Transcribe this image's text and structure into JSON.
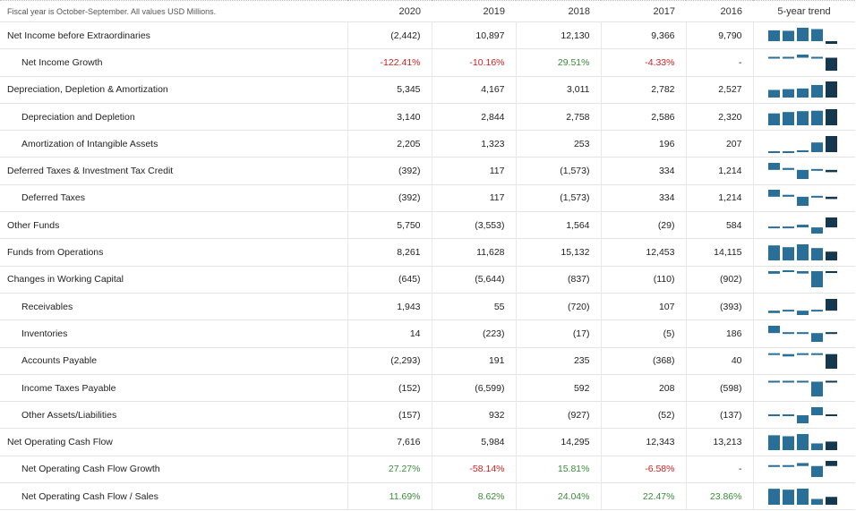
{
  "header": {
    "note": "Fiscal year is October-September. All values USD Millions.",
    "years": [
      "2020",
      "2019",
      "2018",
      "2017",
      "2016"
    ],
    "trend_label": "5-year trend"
  },
  "colors": {
    "trend_bar": "#2a6f97",
    "trend_bar_latest": "#16384f",
    "negative": "#d01f1f",
    "positive": "#3a8a3a"
  },
  "rows": [
    {
      "label": "Net Income before Extraordinaries",
      "indent": 0,
      "values": [
        "(2,442)",
        "10,897",
        "12,130",
        "9,366",
        "9,790"
      ],
      "trend": [
        9790,
        9366,
        12130,
        10897,
        -2442
      ]
    },
    {
      "label": "Net Income Growth",
      "indent": 1,
      "values": [
        "-122.41%",
        "-10.16%",
        "29.51%",
        "-4.33%",
        "-"
      ],
      "tones": [
        "neg",
        "neg",
        "pos",
        "neg",
        ""
      ],
      "trend": [
        0,
        -4.33,
        29.51,
        -10.16,
        -122.41
      ]
    },
    {
      "label": "Depreciation, Depletion & Amortization",
      "indent": 0,
      "values": [
        "5,345",
        "4,167",
        "3,011",
        "2,782",
        "2,527"
      ],
      "trend": [
        2527,
        2782,
        3011,
        4167,
        5345
      ]
    },
    {
      "label": "Depreciation and Depletion",
      "indent": 1,
      "values": [
        "3,140",
        "2,844",
        "2,758",
        "2,586",
        "2,320"
      ],
      "trend": [
        2320,
        2586,
        2758,
        2844,
        3140
      ]
    },
    {
      "label": "Amortization of Intangible Assets",
      "indent": 1,
      "values": [
        "2,205",
        "1,323",
        "253",
        "196",
        "207"
      ],
      "trend": [
        207,
        196,
        253,
        1323,
        2205
      ]
    },
    {
      "label": "Deferred Taxes & Investment Tax Credit",
      "indent": 0,
      "values": [
        "(392)",
        "117",
        "(1,573)",
        "334",
        "1,214"
      ],
      "trend": [
        1214,
        334,
        -1573,
        117,
        -392
      ]
    },
    {
      "label": "Deferred Taxes",
      "indent": 1,
      "values": [
        "(392)",
        "117",
        "(1,573)",
        "334",
        "1,214"
      ],
      "trend": [
        1214,
        334,
        -1573,
        117,
        -392
      ]
    },
    {
      "label": "Other Funds",
      "indent": 0,
      "values": [
        "5,750",
        "(3,553)",
        "1,564",
        "(29)",
        "584"
      ],
      "trend": [
        584,
        -29,
        1564,
        -3553,
        5750
      ]
    },
    {
      "label": "Funds from Operations",
      "indent": 0,
      "values": [
        "8,261",
        "11,628",
        "15,132",
        "12,453",
        "14,115"
      ],
      "trend": [
        14115,
        12453,
        15132,
        11628,
        8261
      ]
    },
    {
      "label": "Changes in Working Capital",
      "indent": 0,
      "values": [
        "(645)",
        "(5,644)",
        "(837)",
        "(110)",
        "(902)"
      ],
      "trend": [
        -902,
        -110,
        -837,
        -5644,
        -645
      ]
    },
    {
      "label": "Receivables",
      "indent": 1,
      "values": [
        "1,943",
        "55",
        "(720)",
        "107",
        "(393)"
      ],
      "trend": [
        -393,
        107,
        -720,
        55,
        1943
      ]
    },
    {
      "label": "Inventories",
      "indent": 1,
      "values": [
        "14",
        "(223)",
        "(17)",
        "(5)",
        "186"
      ],
      "trend": [
        186,
        -5,
        -17,
        -223,
        14
      ]
    },
    {
      "label": "Accounts Payable",
      "indent": 1,
      "values": [
        "(2,293)",
        "191",
        "235",
        "(368)",
        "40"
      ],
      "trend": [
        40,
        -368,
        235,
        191,
        -2293
      ]
    },
    {
      "label": "Income Taxes Payable",
      "indent": 1,
      "values": [
        "(152)",
        "(6,599)",
        "592",
        "208",
        "(598)"
      ],
      "trend": [
        -598,
        208,
        592,
        -6599,
        -152
      ]
    },
    {
      "label": "Other Assets/Liabilities",
      "indent": 1,
      "values": [
        "(157)",
        "932",
        "(927)",
        "(52)",
        "(137)"
      ],
      "trend": [
        -137,
        -52,
        -927,
        932,
        -157
      ]
    },
    {
      "label": "Net Operating Cash Flow",
      "indent": 0,
      "values": [
        "7,616",
        "5,984",
        "14,295",
        "12,343",
        "13,213"
      ],
      "trend": [
        13213,
        12343,
        14295,
        5984,
        7616
      ]
    },
    {
      "label": "Net Operating Cash Flow Growth",
      "indent": 1,
      "values": [
        "27.27%",
        "-58.14%",
        "15.81%",
        "-6.58%",
        "-"
      ],
      "tones": [
        "pos",
        "neg",
        "pos",
        "neg",
        ""
      ],
      "trend": [
        0,
        -6.58,
        15.81,
        -58.14,
        27.27
      ]
    },
    {
      "label": "Net Operating Cash Flow / Sales",
      "indent": 1,
      "values": [
        "11.69%",
        "8.62%",
        "24.04%",
        "22.47%",
        "23.86%"
      ],
      "tones": [
        "pos",
        "pos",
        "pos",
        "pos",
        "pos"
      ],
      "trend": [
        23.86,
        22.47,
        24.04,
        8.62,
        11.69
      ]
    }
  ]
}
